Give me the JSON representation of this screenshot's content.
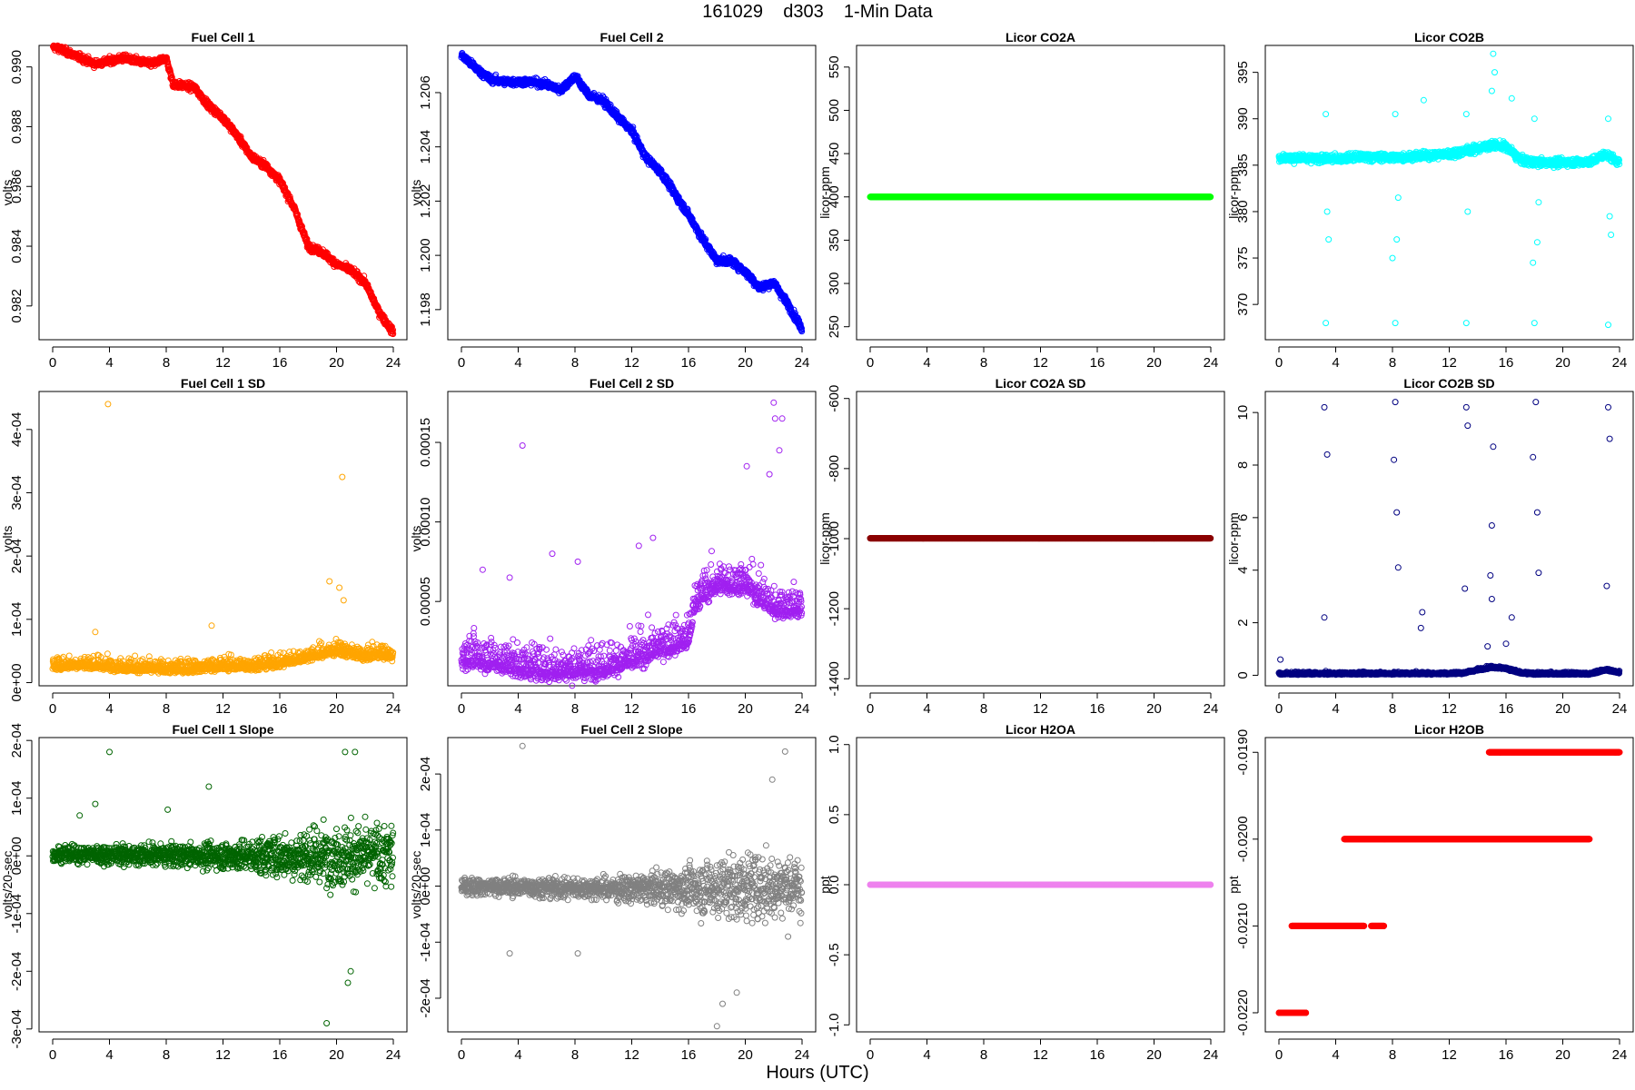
{
  "figure": {
    "title": "161029    d303    1-Min Data",
    "xlabel": "Hours (UTC)"
  },
  "chart_data": [
    {
      "id": "fc1",
      "type": "scatter",
      "title": "Fuel Cell 1",
      "ylabel": "volts",
      "color": "#ff0000",
      "xlim": [
        0,
        24
      ],
      "xticks": [
        0,
        4,
        8,
        12,
        16,
        20,
        24
      ],
      "ylim": [
        0.98087,
        0.99072
      ],
      "yticks": [
        0.982,
        0.984,
        0.986,
        0.988,
        0.99
      ],
      "yticklabels": [
        "0.982",
        "0.984",
        "0.986",
        "0.988",
        "0.990"
      ],
      "series": [
        {
          "x": [
            0,
            1,
            2,
            3,
            4,
            5,
            6,
            7,
            8,
            8.5,
            9,
            10,
            11,
            12,
            13,
            14,
            15,
            16,
            17,
            18,
            19,
            20,
            21,
            22,
            23,
            24
          ],
          "y": [
            0.9907,
            0.9905,
            0.9903,
            0.9901,
            0.9902,
            0.9903,
            0.9902,
            0.9901,
            0.9903,
            0.9894,
            0.9894,
            0.9893,
            0.9887,
            0.9883,
            0.9877,
            0.987,
            0.9867,
            0.9862,
            0.9853,
            0.984,
            0.9838,
            0.9834,
            0.9832,
            0.9828,
            0.9818,
            0.9811
          ],
          "noise": 0.00012
        }
      ]
    },
    {
      "id": "fc2",
      "type": "scatter",
      "title": "Fuel Cell 2",
      "ylabel": "volts",
      "color": "#0000ff",
      "xlim": [
        0,
        24
      ],
      "xticks": [
        0,
        4,
        8,
        12,
        16,
        20,
        24
      ],
      "ylim": [
        1.19689,
        1.20774
      ],
      "yticks": [
        1.198,
        1.2,
        1.202,
        1.204,
        1.206
      ],
      "yticklabels": [
        "1.198",
        "1.200",
        "1.202",
        "1.204",
        "1.206"
      ],
      "series": [
        {
          "x": [
            0,
            1,
            2,
            3,
            4,
            5,
            6,
            7,
            8,
            9,
            10,
            11,
            12,
            13,
            14,
            15,
            16,
            17,
            18,
            19,
            20,
            21,
            22,
            23,
            24
          ],
          "y": [
            1.2074,
            1.2069,
            1.2065,
            1.2064,
            1.2064,
            1.2064,
            1.2063,
            1.2061,
            1.2066,
            1.2059,
            1.2057,
            1.2051,
            1.2046,
            1.2036,
            1.2031,
            1.2023,
            1.2015,
            1.2006,
            1.1998,
            1.1998,
            1.1994,
            1.1988,
            1.199,
            1.1982,
            1.1973
          ],
          "noise": 0.00014
        }
      ]
    },
    {
      "id": "co2a",
      "type": "scatter",
      "title": "Licor CO2A",
      "ylabel": "licor-ppm",
      "color": "#00ff00",
      "xlim": [
        0,
        24
      ],
      "xticks": [
        0,
        4,
        8,
        12,
        16,
        20,
        24
      ],
      "ylim": [
        235,
        575
      ],
      "yticks": [
        250,
        300,
        350,
        400,
        450,
        500,
        550
      ],
      "yticklabels": [
        "250",
        "300",
        "350",
        "400",
        "450",
        "500",
        "550"
      ],
      "series": [
        {
          "x": [
            0,
            24
          ],
          "y": [
            400,
            400
          ],
          "noise": 0
        }
      ]
    },
    {
      "id": "co2b",
      "type": "scatter",
      "title": "Licor CO2B",
      "ylabel": "licor-ppm",
      "color": "#00ffff",
      "xlim": [
        0,
        24
      ],
      "xticks": [
        0,
        4,
        8,
        12,
        16,
        20,
        24
      ],
      "ylim": [
        366.2,
        397.9
      ],
      "yticks": [
        370,
        375,
        380,
        385,
        390,
        395
      ],
      "yticklabels": [
        "370",
        "375",
        "380",
        "385",
        "390",
        "395"
      ],
      "series": [
        {
          "x": [
            0,
            2,
            4,
            6,
            8,
            10,
            12,
            13,
            14,
            15,
            16,
            17,
            18,
            20,
            22,
            23,
            24
          ],
          "y": [
            385.8,
            385.7,
            385.7,
            385.9,
            385.8,
            386.0,
            386.2,
            386.5,
            386.8,
            387.2,
            387.0,
            385.6,
            385.3,
            385.3,
            385.4,
            386.2,
            385.3
          ],
          "noise": 0.45
        }
      ],
      "outliers": [
        [
          3.3,
          368
        ],
        [
          3.3,
          390.5
        ],
        [
          3.4,
          380
        ],
        [
          3.5,
          377
        ],
        [
          8.2,
          368
        ],
        [
          8.2,
          390.5
        ],
        [
          8.3,
          377
        ],
        [
          8.4,
          381.5
        ],
        [
          8.0,
          375
        ],
        [
          10.2,
          392
        ],
        [
          13.2,
          368
        ],
        [
          13.2,
          390.5
        ],
        [
          13.3,
          380
        ],
        [
          15.1,
          397
        ],
        [
          15.2,
          395
        ],
        [
          15.0,
          393
        ],
        [
          16.4,
          392.2
        ],
        [
          18.0,
          368
        ],
        [
          18.0,
          390
        ],
        [
          18.2,
          376.7
        ],
        [
          18.3,
          381
        ],
        [
          17.9,
          374.5
        ],
        [
          23.2,
          367.8
        ],
        [
          23.2,
          390
        ],
        [
          23.3,
          379.5
        ],
        [
          23.4,
          377.5
        ]
      ]
    },
    {
      "id": "fc1sd",
      "type": "scatter",
      "title": "Fuel Cell 1 SD",
      "ylabel": "volts",
      "color": "#ffa500",
      "xlim": [
        0,
        24
      ],
      "xticks": [
        0,
        4,
        8,
        12,
        16,
        20,
        24
      ],
      "ylim": [
        -5e-06,
        0.00046
      ],
      "yticks": [
        0,
        0.0001,
        0.0002,
        0.0003,
        0.0004
      ],
      "yticklabels": [
        "0e+00",
        "1e-04",
        "2e-04",
        "3e-04",
        "4e-04"
      ],
      "series": [
        {
          "x": [
            0,
            2,
            4,
            6,
            8,
            10,
            12,
            14,
            16,
            17,
            18,
            19,
            20,
            21,
            22,
            23,
            24
          ],
          "y": [
            2.5e-05,
            2.8e-05,
            2.5e-05,
            2.2e-05,
            2e-05,
            2.2e-05,
            2.5e-05,
            2.5e-05,
            3e-05,
            3.5e-05,
            4e-05,
            4.5e-05,
            5e-05,
            4.5e-05,
            4e-05,
            4.5e-05,
            4e-05
          ],
          "noise": 1.2e-05
        }
      ],
      "outliers": [
        [
          3.9,
          0.00044
        ],
        [
          20.4,
          0.000325
        ],
        [
          19.5,
          0.00016
        ],
        [
          20.2,
          0.00015
        ],
        [
          20.5,
          0.00013
        ],
        [
          3.0,
          8e-05
        ],
        [
          11.2,
          9e-05
        ]
      ]
    },
    {
      "id": "fc2sd",
      "type": "scatter",
      "title": "Fuel Cell 2 SD",
      "ylabel": "volts",
      "color": "#a020f0",
      "xlim": [
        0,
        24
      ],
      "xticks": [
        0,
        4,
        8,
        12,
        16,
        20,
        24
      ],
      "ylim": [
        -3e-06,
        0.000182
      ],
      "yticks": [
        5e-05,
        0.0001,
        0.00015
      ],
      "yticklabels": [
        "0.00005",
        "0.00010",
        "0.00015"
      ],
      "series": [
        {
          "x": [
            0,
            2,
            4,
            6,
            8,
            10,
            12,
            14,
            16,
            16.5,
            18,
            20,
            22,
            24
          ],
          "y": [
            1.4e-05,
            1.2e-05,
            8e-06,
            6e-06,
            6e-06,
            8e-06,
            1.2e-05,
            2e-05,
            2.5e-05,
            5e-05,
            6e-05,
            6e-05,
            4.5e-05,
            4.5e-05
          ],
          "noise": 1.2e-05
        }
      ],
      "outliers": [
        [
          4.3,
          0.000148
        ],
        [
          22.0,
          0.000175
        ],
        [
          22.1,
          0.000165
        ],
        [
          22.6,
          0.000165
        ],
        [
          22.4,
          0.000145
        ],
        [
          21.7,
          0.00013
        ],
        [
          20.1,
          0.000135
        ],
        [
          1.5,
          7e-05
        ],
        [
          3.4,
          6.5e-05
        ],
        [
          6.4,
          8e-05
        ],
        [
          8.2,
          7.5e-05
        ],
        [
          12.5,
          8.5e-05
        ],
        [
          13.5,
          9e-05
        ]
      ]
    },
    {
      "id": "co2asd",
      "type": "scatter",
      "title": "Licor CO2A SD",
      "ylabel": "licor-ppm",
      "color": "#8b0000",
      "xlim": [
        0,
        24
      ],
      "xticks": [
        0,
        4,
        8,
        12,
        16,
        20,
        24
      ],
      "ylim": [
        -1420,
        -580
      ],
      "yticks": [
        -1400,
        -1200,
        -1000,
        -800,
        -600
      ],
      "yticklabels": [
        "-1400",
        "-1200",
        "-1000",
        "-800",
        "-600"
      ],
      "series": [
        {
          "x": [
            0,
            24
          ],
          "y": [
            -999,
            -999
          ],
          "noise": 0
        }
      ]
    },
    {
      "id": "co2bsd",
      "type": "scatter",
      "title": "Licor CO2B SD",
      "ylabel": "licor-ppm",
      "color": "#000080",
      "xlim": [
        0,
        24
      ],
      "xticks": [
        0,
        4,
        8,
        12,
        16,
        20,
        24
      ],
      "ylim": [
        -0.4,
        10.8
      ],
      "yticks": [
        0,
        2,
        4,
        6,
        8,
        10
      ],
      "yticklabels": [
        "0",
        "2",
        "4",
        "6",
        "8",
        "10"
      ],
      "series": [
        {
          "x": [
            0,
            12,
            13,
            14,
            15,
            16,
            17,
            18,
            22,
            23,
            24
          ],
          "y": [
            0.05,
            0.06,
            0.08,
            0.2,
            0.3,
            0.25,
            0.08,
            0.05,
            0.05,
            0.2,
            0.1
          ],
          "noise": 0.05
        }
      ],
      "outliers": [
        [
          3.2,
          10.2
        ],
        [
          3.4,
          8.4
        ],
        [
          3.2,
          2.2
        ],
        [
          0.1,
          0.6
        ],
        [
          8.2,
          10.4
        ],
        [
          8.1,
          8.2
        ],
        [
          8.3,
          6.2
        ],
        [
          8.4,
          4.1
        ],
        [
          10.1,
          2.4
        ],
        [
          10.0,
          1.8
        ],
        [
          13.2,
          10.2
        ],
        [
          13.3,
          9.5
        ],
        [
          13.1,
          3.3
        ],
        [
          15.1,
          8.7
        ],
        [
          15.0,
          5.7
        ],
        [
          14.9,
          3.8
        ],
        [
          15.0,
          2.9
        ],
        [
          16.4,
          2.2
        ],
        [
          18.1,
          10.4
        ],
        [
          17.9,
          8.3
        ],
        [
          18.2,
          6.2
        ],
        [
          18.3,
          3.9
        ],
        [
          23.2,
          10.2
        ],
        [
          23.3,
          9.0
        ],
        [
          23.1,
          3.4
        ],
        [
          16.0,
          1.2
        ],
        [
          14.7,
          1.1
        ]
      ]
    },
    {
      "id": "fc1slope",
      "type": "scatter",
      "title": "Fuel Cell 1 Slope",
      "ylabel": "volts/20-sec",
      "color": "#006400",
      "xlim": [
        0,
        24
      ],
      "xticks": [
        0,
        4,
        8,
        12,
        16,
        20,
        24
      ],
      "ylim": [
        -0.000305,
        0.000205
      ],
      "yticks": [
        -0.0003,
        -0.0002,
        -0.0001,
        0,
        0.0001,
        0.0002
      ],
      "yticklabels": [
        "-3e-04",
        "-2e-04",
        "-1e-04",
        "0e+00",
        "1e-04",
        "2e-04"
      ],
      "series": [
        {
          "x": [
            0,
            12,
            24
          ],
          "y": [
            3e-06,
            0,
            0
          ],
          "noise": 1.5e-05,
          "noiseGrow": [
            [
              0,
              1.5e-05
            ],
            [
              10,
              2e-05
            ],
            [
              14,
              3e-05
            ],
            [
              18,
              5e-05
            ],
            [
              24,
              6e-05
            ]
          ]
        }
      ],
      "outliers": [
        [
          4.0,
          0.00018
        ],
        [
          19.3,
          -0.00029
        ],
        [
          20.8,
          -0.00022
        ],
        [
          21.0,
          -0.0002
        ],
        [
          21.3,
          0.00018
        ],
        [
          20.6,
          0.00018
        ],
        [
          11.0,
          0.00012
        ],
        [
          1.9,
          7e-05
        ],
        [
          3.0,
          9e-05
        ],
        [
          8.1,
          8e-05
        ]
      ]
    },
    {
      "id": "fc2slope",
      "type": "scatter",
      "title": "Fuel Cell 2 Slope",
      "ylabel": "volts/20-sec",
      "color": "#808080",
      "xlim": [
        0,
        24
      ],
      "xticks": [
        0,
        4,
        8,
        12,
        16,
        20,
        24
      ],
      "ylim": [
        -0.00026,
        0.000265
      ],
      "yticks": [
        -0.0002,
        -0.0001,
        0,
        0.0001,
        0.0002
      ],
      "yticklabels": [
        "-2e-04",
        "-1e-04",
        "0e+00",
        "1e-04",
        "2e-04"
      ],
      "series": [
        {
          "x": [
            0,
            12,
            24
          ],
          "y": [
            0,
            -5e-06,
            0
          ],
          "noise": 1.5e-05,
          "noiseGrow": [
            [
              0,
              1.5e-05
            ],
            [
              10,
              2e-05
            ],
            [
              14,
              3e-05
            ],
            [
              16,
              4e-05
            ],
            [
              18,
              6e-05
            ],
            [
              24,
              6e-05
            ]
          ]
        }
      ],
      "outliers": [
        [
          4.3,
          0.00025
        ],
        [
          18.0,
          -0.00025
        ],
        [
          18.4,
          -0.00021
        ],
        [
          19.4,
          -0.00019
        ],
        [
          22.8,
          0.00024
        ],
        [
          21.9,
          0.00019
        ],
        [
          3.4,
          -0.00012
        ],
        [
          8.2,
          -0.00012
        ]
      ]
    },
    {
      "id": "h2oa",
      "type": "scatter",
      "title": "Licor H2OA",
      "ylabel": "ppt",
      "color": "#ee82ee",
      "xlim": [
        0,
        24
      ],
      "xticks": [
        0,
        4,
        8,
        12,
        16,
        20,
        24
      ],
      "ylim": [
        -1.05,
        1.05
      ],
      "yticks": [
        -1,
        -0.5,
        0,
        0.5,
        1
      ],
      "yticklabels": [
        "-1.0",
        "-0.5",
        "0.0",
        "0.5",
        "1.0"
      ],
      "series": [
        {
          "x": [
            0,
            24
          ],
          "y": [
            0,
            0
          ],
          "noise": 0
        }
      ]
    },
    {
      "id": "h2ob",
      "type": "scatter",
      "title": "Licor H2OB",
      "ylabel": "ppt",
      "color": "#ff0000",
      "xlim": [
        0,
        24
      ],
      "xticks": [
        0,
        4,
        8,
        12,
        16,
        20,
        24
      ],
      "ylim": [
        -0.02222,
        -0.01883
      ],
      "yticks": [
        -0.022,
        -0.021,
        -0.02,
        -0.019
      ],
      "yticklabels": [
        "-0.0220",
        "-0.0210",
        "-0.0200",
        "-0.0190"
      ],
      "levels": [
        {
          "y": -0.022,
          "from": 0,
          "to": 1.9
        },
        {
          "y": -0.021,
          "from": 0.9,
          "to": 6.0
        },
        {
          "y": -0.021,
          "from": 6.5,
          "to": 7.4
        },
        {
          "y": -0.02,
          "from": 4.6,
          "to": 21.9
        },
        {
          "y": -0.019,
          "from": 14.8,
          "to": 24
        }
      ]
    }
  ]
}
